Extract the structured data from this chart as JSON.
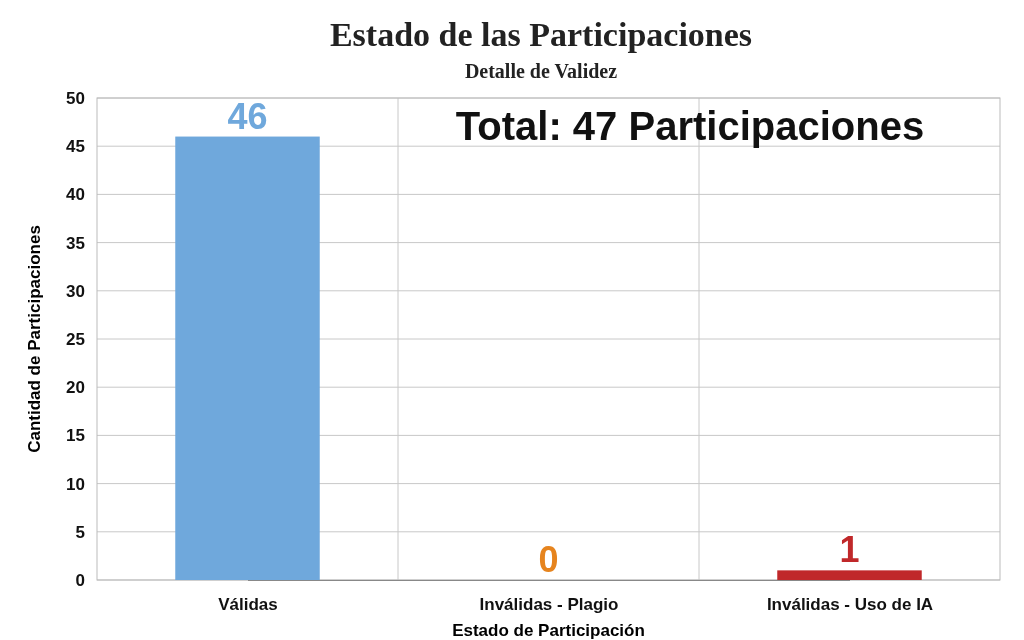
{
  "chart_data": {
    "type": "bar",
    "title": "Estado de las Participaciones",
    "subtitle": "Detalle de Validez",
    "xlabel": "Estado de Participación",
    "ylabel": "Cantidad de Participaciones",
    "categories": [
      "Válidas",
      "Inválidas - Plagio",
      "Inválidas - Uso de IA"
    ],
    "values": [
      46,
      0,
      1
    ],
    "colors": [
      "#6fa8dc",
      "#e6841e",
      "#c0282a"
    ],
    "ylim": [
      0,
      50
    ],
    "yticks": [
      0,
      5,
      10,
      15,
      20,
      25,
      30,
      35,
      40,
      45,
      50
    ],
    "grid": true,
    "data_labels": true,
    "annotations": [
      "Total: 47 Participaciones"
    ]
  }
}
